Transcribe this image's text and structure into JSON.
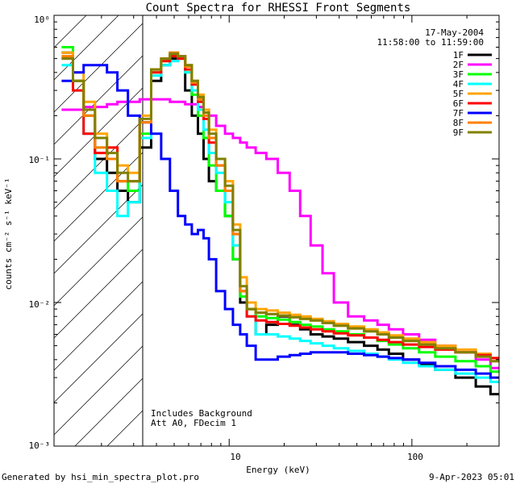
{
  "chart_data": {
    "type": "line",
    "title": "Count Spectra for RHESSI Front Segments",
    "xlabel": "Energy (keV)",
    "ylabel": "counts cm⁻² s⁻¹ keV⁻¹",
    "xscale": "log",
    "yscale": "log",
    "xlim": [
      1.1,
      300
    ],
    "ylim": [
      0.001,
      1
    ],
    "x_tick_labels": [
      "10",
      "100"
    ],
    "y_tick_labels": [
      "10⁰",
      "10⁻¹",
      "10⁻²",
      "10⁻³"
    ],
    "date": "17-May-2004",
    "time_range": "11:58:00 to 11:59:00",
    "attenuated_region_max_keV": 3,
    "annotations": [
      "Includes Background",
      "Att A0, FDecim 1"
    ],
    "footer_left": "Generated by hsi_min_spectra_plot.pro",
    "footer_right": "9-Apr-2023 05:01",
    "x": [
      1.3,
      1.5,
      1.7,
      2.0,
      2.3,
      2.6,
      3.0,
      3.5,
      4.0,
      4.5,
      5.0,
      5.5,
      6.0,
      6.5,
      7.0,
      7.5,
      8.0,
      9.0,
      10.0,
      11.0,
      12.0,
      13.0,
      15.0,
      17.0,
      20.0,
      23.0,
      26.0,
      30.0,
      35.0,
      40.0,
      50.0,
      60.0,
      70.0,
      80.0,
      100.0,
      120.0,
      150.0,
      200.0,
      250.0,
      290.0
    ],
    "series": [
      {
        "name": "1F",
        "color": "#000000",
        "values": [
          0.55,
          0.35,
          0.2,
          0.1,
          0.08,
          0.06,
          0.05,
          0.12,
          0.35,
          0.45,
          0.5,
          0.5,
          0.3,
          0.2,
          0.15,
          0.1,
          0.07,
          0.06,
          0.04,
          0.02,
          0.01,
          0.009,
          0.006,
          0.007,
          0.008,
          0.007,
          0.0065,
          0.006,
          0.0058,
          0.0056,
          0.0053,
          0.005,
          0.0047,
          0.0044,
          0.004,
          0.0037,
          0.0034,
          0.003,
          0.0026,
          0.0023
        ]
      },
      {
        "name": "2F",
        "color": "#ff00ff",
        "values": [
          0.22,
          0.22,
          0.23,
          0.23,
          0.24,
          0.25,
          0.25,
          0.26,
          0.26,
          0.26,
          0.25,
          0.25,
          0.24,
          0.24,
          0.23,
          0.22,
          0.2,
          0.17,
          0.15,
          0.14,
          0.13,
          0.12,
          0.11,
          0.1,
          0.08,
          0.06,
          0.04,
          0.025,
          0.016,
          0.01,
          0.008,
          0.0075,
          0.007,
          0.0065,
          0.006,
          0.0055,
          0.005,
          0.0045,
          0.004,
          0.0035
        ]
      },
      {
        "name": "3F",
        "color": "#00ff00",
        "values": [
          0.6,
          0.35,
          0.2,
          0.12,
          0.1,
          0.07,
          0.06,
          0.15,
          0.4,
          0.48,
          0.52,
          0.5,
          0.4,
          0.28,
          0.2,
          0.14,
          0.09,
          0.06,
          0.04,
          0.02,
          0.011,
          0.009,
          0.008,
          0.0078,
          0.0076,
          0.0073,
          0.007,
          0.0068,
          0.0065,
          0.0063,
          0.006,
          0.0057,
          0.0054,
          0.0051,
          0.0048,
          0.0045,
          0.0042,
          0.0039,
          0.0036,
          0.0033
        ]
      },
      {
        "name": "4F",
        "color": "#00ffff",
        "values": [
          0.45,
          0.3,
          0.15,
          0.08,
          0.06,
          0.04,
          0.05,
          0.14,
          0.38,
          0.45,
          0.48,
          0.5,
          0.4,
          0.3,
          0.22,
          0.16,
          0.11,
          0.08,
          0.05,
          0.025,
          0.012,
          0.008,
          0.006,
          0.006,
          0.0058,
          0.0056,
          0.0054,
          0.0052,
          0.005,
          0.0048,
          0.0046,
          0.0044,
          0.0042,
          0.004,
          0.0038,
          0.0036,
          0.0034,
          0.0032,
          0.003,
          0.0028
        ]
      },
      {
        "name": "5F",
        "color": "#ffa500",
        "values": [
          0.55,
          0.4,
          0.25,
          0.15,
          0.12,
          0.09,
          0.08,
          0.2,
          0.42,
          0.5,
          0.55,
          0.52,
          0.45,
          0.35,
          0.28,
          0.22,
          0.16,
          0.1,
          0.07,
          0.035,
          0.015,
          0.01,
          0.009,
          0.0088,
          0.0085,
          0.0082,
          0.008,
          0.0077,
          0.0074,
          0.0071,
          0.0068,
          0.0065,
          0.0062,
          0.0059,
          0.0056,
          0.0053,
          0.005,
          0.0047,
          0.0044,
          0.0041
        ]
      },
      {
        "name": "6F",
        "color": "#ff0000",
        "values": [
          0.5,
          0.3,
          0.15,
          0.11,
          0.12,
          0.07,
          0.07,
          0.18,
          0.4,
          0.48,
          0.52,
          0.5,
          0.42,
          0.33,
          0.25,
          0.19,
          0.13,
          0.09,
          0.06,
          0.03,
          0.012,
          0.008,
          0.0075,
          0.0073,
          0.0071,
          0.0069,
          0.0067,
          0.0065,
          0.0063,
          0.0061,
          0.0059,
          0.0057,
          0.0055,
          0.0053,
          0.0051,
          0.0049,
          0.0047,
          0.0045,
          0.0043,
          0.0041
        ]
      },
      {
        "name": "7F",
        "color": "#0000ff",
        "values": [
          0.35,
          0.4,
          0.45,
          0.45,
          0.4,
          0.3,
          0.2,
          0.18,
          0.15,
          0.1,
          0.06,
          0.04,
          0.035,
          0.03,
          0.032,
          0.028,
          0.02,
          0.012,
          0.009,
          0.007,
          0.006,
          0.005,
          0.004,
          0.004,
          0.0042,
          0.0043,
          0.0044,
          0.0045,
          0.0045,
          0.0045,
          0.0044,
          0.0043,
          0.0042,
          0.0041,
          0.004,
          0.0038,
          0.0036,
          0.0034,
          0.0032,
          0.003
        ]
      },
      {
        "name": "8F",
        "color": "#ff8000",
        "values": [
          0.52,
          0.35,
          0.2,
          0.12,
          0.1,
          0.07,
          0.07,
          0.18,
          0.42,
          0.5,
          0.55,
          0.52,
          0.44,
          0.34,
          0.26,
          0.2,
          0.14,
          0.09,
          0.06,
          0.03,
          0.012,
          0.009,
          0.0085,
          0.0083,
          0.0081,
          0.0079,
          0.0077,
          0.0075,
          0.0072,
          0.0069,
          0.0066,
          0.0063,
          0.006,
          0.0057,
          0.0054,
          0.0051,
          0.0048,
          0.0045,
          0.0042,
          0.0039
        ]
      },
      {
        "name": "9F",
        "color": "#808000",
        "values": [
          0.5,
          0.35,
          0.22,
          0.14,
          0.11,
          0.08,
          0.07,
          0.19,
          0.42,
          0.5,
          0.54,
          0.52,
          0.45,
          0.35,
          0.27,
          0.21,
          0.15,
          0.1,
          0.065,
          0.032,
          0.013,
          0.009,
          0.0085,
          0.0083,
          0.0081,
          0.0079,
          0.0077,
          0.0075,
          0.0072,
          0.0069,
          0.0066,
          0.0063,
          0.006,
          0.0057,
          0.0054,
          0.0051,
          0.0048,
          0.0045,
          0.0042,
          0.0039
        ]
      }
    ]
  }
}
